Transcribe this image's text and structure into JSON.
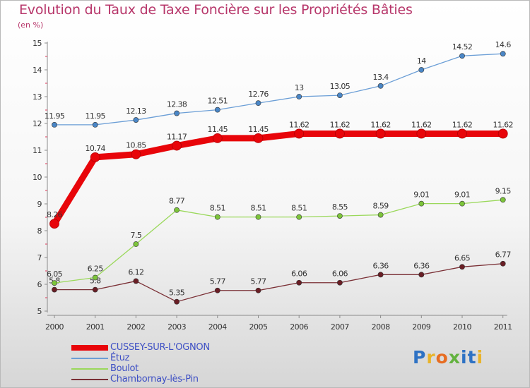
{
  "title": "Evolution du Taux de Taxe Foncière sur les Propriétés Bâties",
  "unit_label": "(en %)",
  "logo": {
    "letters": [
      "P",
      "r",
      "o",
      "x",
      "i",
      "t",
      "i"
    ],
    "colors": [
      "#2e72c4",
      "#e8b32a",
      "#e76d22",
      "#63b23f",
      "#2e72c4",
      "#2e72c4",
      "#e8b32a"
    ]
  },
  "chart_data": {
    "type": "line",
    "x": [
      "2000",
      "2001",
      "2002",
      "2003",
      "2004",
      "2005",
      "2006",
      "2007",
      "2008",
      "2009",
      "2010",
      "2011"
    ],
    "ylim": [
      5,
      15
    ],
    "yticks": [
      5,
      6,
      7,
      8,
      9,
      10,
      11,
      12,
      13,
      14,
      15
    ],
    "grid": false,
    "legend_position": "bottom-left",
    "series": [
      {
        "name": "CUSSEY-SUR-L'OGNON",
        "color": "#e8050a",
        "emphasis": true,
        "values": [
          8.26,
          10.74,
          10.85,
          11.17,
          11.45,
          11.45,
          11.62,
          11.62,
          11.62,
          11.62,
          11.62,
          11.62
        ],
        "labels": [
          "8.26",
          "10.74",
          "10.85",
          "11.17",
          "11.45",
          "11.45",
          "11.62",
          "11.62",
          "11.62",
          "11.62",
          "11.62",
          "11.62"
        ]
      },
      {
        "name": "Étuz",
        "color": "#6b9ed6",
        "point_color": "#4a86c6",
        "values": [
          11.95,
          11.95,
          12.13,
          12.38,
          12.51,
          12.76,
          13,
          13.05,
          13.4,
          14,
          14.52,
          14.6
        ],
        "labels": [
          "11.95",
          "11.95",
          "12.13",
          "12.38",
          "12.51",
          "12.76",
          "13",
          "13.05",
          "13.4",
          "14",
          "14.52",
          "14.6"
        ]
      },
      {
        "name": "Boulot",
        "color": "#9ad85a",
        "point_color": "#7cc43a",
        "values": [
          6.05,
          6.25,
          7.5,
          8.77,
          8.51,
          8.51,
          8.51,
          8.55,
          8.59,
          9.01,
          9.01,
          9.15
        ],
        "labels": [
          "6.05",
          "6.25",
          "7.5",
          "8.77",
          "8.51",
          "8.51",
          "8.51",
          "8.55",
          "8.59",
          "9.01",
          "9.01",
          "9.15"
        ]
      },
      {
        "name": "Chambornay-lès-Pin",
        "color": "#7a2f35",
        "point_color": "#6a1e25",
        "values": [
          5.8,
          5.8,
          6.12,
          5.35,
          5.77,
          5.77,
          6.06,
          6.06,
          6.36,
          6.36,
          6.65,
          6.77
        ],
        "labels": [
          "5.8",
          "5.8",
          "6.12",
          "5.35",
          "5.77",
          "5.77",
          "6.06",
          "6.06",
          "6.36",
          "6.36",
          "6.65",
          "6.77"
        ]
      }
    ]
  }
}
